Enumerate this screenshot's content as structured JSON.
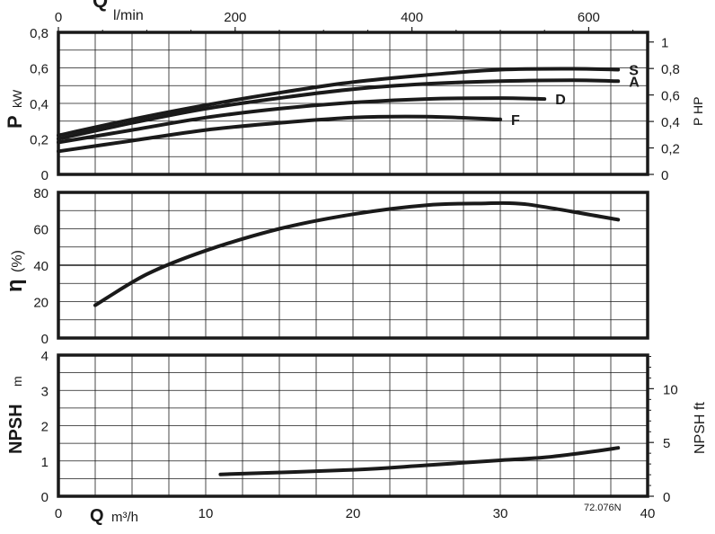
{
  "chart_data": [
    {
      "type": "line",
      "panel": "power",
      "ylabel_main": "P",
      "ylabel_unit": "kW",
      "y2label": "P HP",
      "x_unit_top": "l/min",
      "x_ticks_top": [
        "0",
        "200",
        "400",
        "600"
      ],
      "y_ticks": [
        "0",
        "0,2",
        "0,4",
        "0,6",
        "0,8"
      ],
      "y2_ticks": [
        "0",
        "0,2",
        "0,4",
        "0,6",
        "0,8",
        "1"
      ],
      "xlim": [
        0,
        40
      ],
      "ylim": [
        0,
        0.8
      ],
      "grid": true,
      "series": [
        {
          "name": "S",
          "x": [
            0,
            5,
            10,
            15,
            20,
            25,
            30,
            35,
            38
          ],
          "y": [
            0.22,
            0.31,
            0.39,
            0.46,
            0.52,
            0.56,
            0.59,
            0.595,
            0.59
          ]
        },
        {
          "name": "A",
          "x": [
            0,
            5,
            10,
            15,
            20,
            25,
            30,
            35,
            38
          ],
          "y": [
            0.2,
            0.29,
            0.37,
            0.43,
            0.48,
            0.51,
            0.525,
            0.53,
            0.525
          ]
        },
        {
          "name": "D",
          "x": [
            0,
            5,
            10,
            15,
            20,
            25,
            30,
            33
          ],
          "y": [
            0.18,
            0.25,
            0.32,
            0.37,
            0.405,
            0.425,
            0.43,
            0.425
          ]
        },
        {
          "name": "F",
          "x": [
            0,
            5,
            10,
            15,
            20,
            25,
            30
          ],
          "y": [
            0.13,
            0.19,
            0.25,
            0.29,
            0.32,
            0.325,
            0.31
          ]
        }
      ]
    },
    {
      "type": "line",
      "panel": "efficiency",
      "ylabel_main": "η",
      "ylabel_unit": "(%)",
      "y_ticks": [
        "0",
        "20",
        "40",
        "60",
        "80"
      ],
      "xlim": [
        0,
        40
      ],
      "ylim": [
        0,
        80
      ],
      "grid": true,
      "series": [
        {
          "x": [
            2.5,
            6,
            10,
            15,
            20,
            25,
            29,
            31,
            33,
            38
          ],
          "y": [
            18,
            35,
            48,
            60,
            68,
            73,
            74,
            74,
            72,
            65
          ]
        }
      ]
    },
    {
      "type": "line",
      "panel": "npsh",
      "ylabel_main": "NPSH",
      "ylabel_unit": "m",
      "y2label": "NPSH ft",
      "y_ticks": [
        "0",
        "1",
        "2",
        "3",
        "4"
      ],
      "y2_ticks": [
        "0",
        "5",
        "10"
      ],
      "xlabel_main": "Q",
      "xlabel_unit": "m³/h",
      "x_ticks": [
        "0",
        "10",
        "20",
        "30",
        "40"
      ],
      "xlim": [
        0,
        40
      ],
      "ylim": [
        0,
        4
      ],
      "grid": true,
      "series": [
        {
          "x": [
            11,
            20,
            25,
            30,
            33,
            36,
            38
          ],
          "y": [
            0.62,
            0.75,
            0.88,
            1.02,
            1.1,
            1.25,
            1.37
          ]
        }
      ]
    }
  ],
  "code_label": "72.076N",
  "top_q_label": "Q"
}
